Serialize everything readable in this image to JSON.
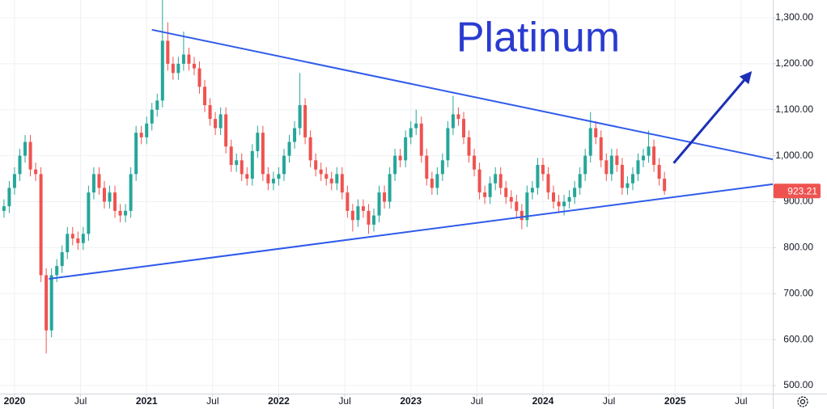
{
  "chart_data": {
    "type": "candlestick",
    "title": "Platinum",
    "x": [
      2019.92,
      2019.96,
      2020.0,
      2020.04,
      2020.08,
      2020.12,
      2020.16,
      2020.2,
      2020.24,
      2020.28,
      2020.32,
      2020.36,
      2020.4,
      2020.44,
      2020.48,
      2020.52,
      2020.56,
      2020.6,
      2020.64,
      2020.68,
      2020.72,
      2020.76,
      2020.8,
      2020.84,
      2020.88,
      2020.92,
      2020.96,
      2021.0,
      2021.04,
      2021.08,
      2021.12,
      2021.16,
      2021.2,
      2021.24,
      2021.28,
      2021.32,
      2021.36,
      2021.4,
      2021.44,
      2021.48,
      2021.52,
      2021.56,
      2021.6,
      2021.64,
      2021.68,
      2021.72,
      2021.76,
      2021.8,
      2021.84,
      2021.88,
      2021.92,
      2021.96,
      2022.0,
      2022.04,
      2022.08,
      2022.12,
      2022.16,
      2022.2,
      2022.24,
      2022.28,
      2022.32,
      2022.36,
      2022.4,
      2022.44,
      2022.48,
      2022.52,
      2022.56,
      2022.6,
      2022.64,
      2022.68,
      2022.72,
      2022.76,
      2022.8,
      2022.84,
      2022.88,
      2022.92,
      2022.96,
      2023.0,
      2023.04,
      2023.08,
      2023.12,
      2023.16,
      2023.2,
      2023.24,
      2023.28,
      2023.32,
      2023.36,
      2023.4,
      2023.44,
      2023.48,
      2023.52,
      2023.56,
      2023.6,
      2023.64,
      2023.68,
      2023.72,
      2023.76,
      2023.8,
      2023.84,
      2023.88,
      2023.92,
      2023.96,
      2024.0,
      2024.04,
      2024.08,
      2024.12,
      2024.16,
      2024.2,
      2024.24,
      2024.28,
      2024.32,
      2024.36,
      2024.4,
      2024.44,
      2024.48,
      2024.52,
      2024.56,
      2024.6,
      2024.64,
      2024.68,
      2024.72,
      2024.76,
      2024.8,
      2024.84,
      2024.88,
      2024.92
    ],
    "open": [
      880,
      890,
      930,
      960,
      1000,
      1030,
      970,
      960,
      740,
      620,
      740,
      760,
      790,
      830,
      820,
      810,
      830,
      920,
      960,
      930,
      900,
      920,
      880,
      870,
      880,
      960,
      1050,
      1040,
      1070,
      1100,
      1120,
      1250,
      1200,
      1180,
      1200,
      1220,
      1200,
      1190,
      1150,
      1110,
      1080,
      1060,
      1090,
      1020,
      980,
      990,
      960,
      950,
      1010,
      1050,
      960,
      940,
      950,
      960,
      1000,
      1030,
      1060,
      1110,
      1040,
      990,
      970,
      960,
      950,
      940,
      960,
      920,
      880,
      860,
      890,
      880,
      850,
      870,
      920,
      900,
      960,
      1000,
      990,
      1040,
      1060,
      1070,
      1000,
      950,
      930,
      960,
      990,
      1060,
      1090,
      1080,
      1040,
      1000,
      970,
      920,
      910,
      940,
      960,
      930,
      910,
      900,
      880,
      860,
      920,
      930,
      980,
      960,
      920,
      900,
      890,
      900,
      910,
      930,
      960,
      1000,
      1060,
      1040,
      990,
      960,
      1000,
      980,
      930,
      940,
      960,
      990,
      1000,
      1020,
      980,
      950
    ],
    "high": [
      905,
      945,
      975,
      1015,
      1045,
      1045,
      985,
      975,
      755,
      755,
      775,
      805,
      845,
      845,
      835,
      845,
      935,
      975,
      975,
      945,
      935,
      935,
      895,
      895,
      975,
      1065,
      1065,
      1085,
      1115,
      1135,
      1340,
      1290,
      1215,
      1215,
      1270,
      1235,
      1215,
      1205,
      1165,
      1125,
      1095,
      1105,
      1105,
      1035,
      1005,
      1005,
      975,
      1025,
      1065,
      1065,
      975,
      965,
      975,
      1015,
      1045,
      1075,
      1180,
      1125,
      1055,
      1005,
      985,
      975,
      965,
      975,
      975,
      935,
      895,
      905,
      905,
      895,
      885,
      935,
      935,
      975,
      1015,
      1015,
      1055,
      1075,
      1100,
      1085,
      1015,
      965,
      975,
      1005,
      1075,
      1130,
      1105,
      1095,
      1055,
      1015,
      985,
      935,
      955,
      975,
      975,
      945,
      925,
      915,
      895,
      935,
      945,
      995,
      995,
      975,
      935,
      915,
      915,
      925,
      945,
      975,
      1015,
      1095,
      1075,
      1055,
      1005,
      1015,
      1015,
      995,
      955,
      975,
      1005,
      1015,
      1055,
      1035,
      995,
      965
    ],
    "low": [
      865,
      875,
      915,
      945,
      985,
      955,
      945,
      725,
      570,
      605,
      725,
      745,
      775,
      805,
      795,
      795,
      815,
      905,
      915,
      885,
      885,
      865,
      855,
      855,
      865,
      945,
      1025,
      1025,
      1055,
      1085,
      1105,
      1185,
      1165,
      1165,
      1185,
      1185,
      1175,
      1135,
      1095,
      1065,
      1045,
      1045,
      1005,
      965,
      965,
      945,
      935,
      935,
      995,
      945,
      925,
      925,
      935,
      945,
      985,
      1015,
      1045,
      1025,
      975,
      955,
      945,
      935,
      925,
      925,
      905,
      865,
      835,
      845,
      865,
      830,
      835,
      855,
      885,
      885,
      945,
      975,
      975,
      1025,
      1045,
      985,
      935,
      915,
      915,
      945,
      975,
      1045,
      1065,
      1025,
      985,
      955,
      905,
      895,
      895,
      925,
      915,
      895,
      885,
      865,
      840,
      845,
      905,
      915,
      945,
      905,
      885,
      875,
      870,
      885,
      895,
      915,
      945,
      985,
      1025,
      975,
      945,
      945,
      965,
      915,
      915,
      925,
      945,
      975,
      985,
      965,
      935,
      915
    ],
    "close": [
      890,
      930,
      960,
      1000,
      1030,
      970,
      960,
      740,
      620,
      740,
      760,
      790,
      830,
      820,
      810,
      830,
      920,
      960,
      930,
      900,
      920,
      880,
      870,
      880,
      960,
      1050,
      1040,
      1070,
      1100,
      1120,
      1250,
      1200,
      1180,
      1200,
      1220,
      1200,
      1190,
      1150,
      1110,
      1080,
      1060,
      1090,
      1020,
      980,
      990,
      960,
      950,
      1010,
      1050,
      960,
      940,
      950,
      960,
      1000,
      1030,
      1060,
      1110,
      1040,
      990,
      970,
      960,
      950,
      940,
      960,
      920,
      880,
      860,
      890,
      880,
      850,
      870,
      920,
      900,
      960,
      1000,
      990,
      1040,
      1060,
      1070,
      1000,
      950,
      930,
      960,
      990,
      1060,
      1090,
      1080,
      1040,
      1000,
      970,
      920,
      910,
      940,
      960,
      930,
      910,
      900,
      880,
      860,
      920,
      930,
      980,
      960,
      920,
      900,
      890,
      900,
      910,
      930,
      960,
      1000,
      1060,
      1040,
      990,
      960,
      1000,
      980,
      930,
      940,
      960,
      990,
      1000,
      1020,
      980,
      950,
      923.21
    ],
    "up_color": "#26a69a",
    "down_color": "#ef5350",
    "xlim": [
      2019.89,
      2025.74
    ],
    "ylim": [
      482.4,
      1338.7
    ],
    "xticks": [
      {
        "value": 2020,
        "label": "2020"
      },
      {
        "value": 2020.5,
        "label": "Jul"
      },
      {
        "value": 2021,
        "label": "2021"
      },
      {
        "value": 2021.5,
        "label": "Jul"
      },
      {
        "value": 2022,
        "label": "2022"
      },
      {
        "value": 2022.5,
        "label": "Jul"
      },
      {
        "value": 2023,
        "label": "2023"
      },
      {
        "value": 2023.5,
        "label": "Jul"
      },
      {
        "value": 2024,
        "label": "2024"
      },
      {
        "value": 2024.5,
        "label": "Jul"
      },
      {
        "value": 2025,
        "label": "2025"
      },
      {
        "value": 2025.5,
        "label": "Jul"
      }
    ],
    "yticks": [
      {
        "value": 500,
        "label": "500.00"
      },
      {
        "value": 600,
        "label": "600.00"
      },
      {
        "value": 700,
        "label": "700.00"
      },
      {
        "value": 800,
        "label": "800.00"
      },
      {
        "value": 900,
        "label": "900.00"
      },
      {
        "value": 1000,
        "label": "1,000.00"
      },
      {
        "value": 1100,
        "label": "1,100.00"
      },
      {
        "value": 1200,
        "label": "1,200.00"
      },
      {
        "value": 1300,
        "label": "1,300.00"
      }
    ],
    "grid": true,
    "trendlines": [
      {
        "x": [
          2021.04,
          2025.74
        ],
        "y": [
          1274,
          992
        ],
        "color": "#2f5bea"
      },
      {
        "x": [
          2020.26,
          2025.74
        ],
        "y": [
          732,
          938
        ],
        "color": "#2f5bea"
      }
    ],
    "arrow": {
      "x": [
        2024.99,
        2025.57
      ],
      "y": [
        984,
        1180
      ],
      "color": "#1c2fb5"
    }
  }
}
